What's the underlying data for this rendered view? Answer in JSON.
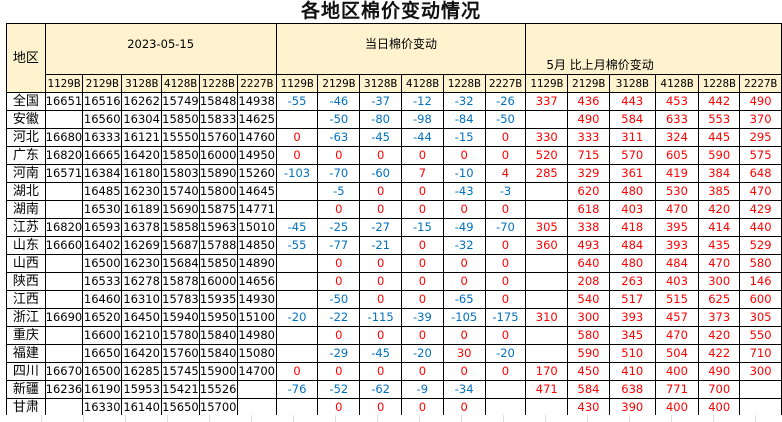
{
  "title": "各地区棉价变动情况",
  "headers": {
    "region": "地区",
    "date": "2023-05-15",
    "daily": "当日棉价变动",
    "monthly": "5月 比上月棉价变动",
    "grades": [
      "1129B",
      "2129B",
      "3128B",
      "4128B",
      "1228B",
      "2227B"
    ]
  },
  "colors": {
    "negative": "#0070c0",
    "non_negative": "#ff0000",
    "header_bg": "#fef2cf"
  },
  "rows": [
    {
      "region": "全国",
      "price": [
        "16651",
        "16516",
        "16262",
        "15749",
        "15848",
        "14938"
      ],
      "daily": [
        "-55",
        "-46",
        "-37",
        "-12",
        "-32",
        "-26"
      ],
      "monthly": [
        "337",
        "436",
        "443",
        "453",
        "442",
        "490"
      ]
    },
    {
      "region": "安徽",
      "price": [
        "",
        "16560",
        "16304",
        "15850",
        "15833",
        "14625"
      ],
      "daily": [
        "",
        "-50",
        "-80",
        "-98",
        "-84",
        "-50"
      ],
      "monthly": [
        "",
        "490",
        "584",
        "633",
        "553",
        "370"
      ]
    },
    {
      "region": "河北",
      "price": [
        "16680",
        "16333",
        "16121",
        "15550",
        "15760",
        "14760"
      ],
      "daily": [
        "0",
        "-63",
        "-45",
        "-44",
        "-15",
        "0"
      ],
      "monthly": [
        "330",
        "333",
        "311",
        "324",
        "445",
        "295"
      ]
    },
    {
      "region": "广东",
      "price": [
        "16820",
        "16665",
        "16420",
        "15850",
        "16000",
        "14950"
      ],
      "daily": [
        "0",
        "0",
        "0",
        "0",
        "0",
        "0"
      ],
      "monthly": [
        "520",
        "715",
        "570",
        "605",
        "590",
        "575"
      ]
    },
    {
      "region": "河南",
      "price": [
        "16571",
        "16384",
        "16180",
        "15803",
        "15890",
        "15260"
      ],
      "daily": [
        "-103",
        "-70",
        "-60",
        "7",
        "-10",
        "4"
      ],
      "monthly": [
        "285",
        "329",
        "361",
        "419",
        "384",
        "648"
      ]
    },
    {
      "region": "湖北",
      "price": [
        "",
        "16485",
        "16230",
        "15740",
        "15800",
        "14645"
      ],
      "daily": [
        "",
        "-5",
        "0",
        "0",
        "-43",
        "-3"
      ],
      "monthly": [
        "",
        "620",
        "480",
        "530",
        "385",
        "470"
      ]
    },
    {
      "region": "湖南",
      "price": [
        "",
        "16530",
        "16189",
        "15690",
        "15875",
        "14771"
      ],
      "daily": [
        "",
        "0",
        "0",
        "0",
        "0",
        "0"
      ],
      "monthly": [
        "",
        "618",
        "403",
        "470",
        "420",
        "429"
      ]
    },
    {
      "region": "江苏",
      "price": [
        "16820",
        "16593",
        "16378",
        "15858",
        "15963",
        "15010"
      ],
      "daily": [
        "-45",
        "-25",
        "-27",
        "-15",
        "-49",
        "-70"
      ],
      "monthly": [
        "305",
        "338",
        "418",
        "395",
        "414",
        "440"
      ]
    },
    {
      "region": "山东",
      "price": [
        "16660",
        "16402",
        "16269",
        "15687",
        "15788",
        "14850"
      ],
      "daily": [
        "-55",
        "-77",
        "-21",
        "0",
        "-32",
        "0"
      ],
      "monthly": [
        "360",
        "493",
        "484",
        "393",
        "435",
        "529"
      ]
    },
    {
      "region": "山西",
      "price": [
        "",
        "16500",
        "16230",
        "15684",
        "15850",
        "14890"
      ],
      "daily": [
        "",
        "0",
        "0",
        "0",
        "0",
        "0"
      ],
      "monthly": [
        "",
        "640",
        "480",
        "484",
        "470",
        "580"
      ]
    },
    {
      "region": "陕西",
      "price": [
        "",
        "16533",
        "16278",
        "15878",
        "16000",
        "14656"
      ],
      "daily": [
        "",
        "0",
        "0",
        "0",
        "0",
        "0"
      ],
      "monthly": [
        "",
        "208",
        "263",
        "403",
        "300",
        "146"
      ]
    },
    {
      "region": "江西",
      "price": [
        "",
        "16460",
        "16310",
        "15783",
        "15935",
        "14930"
      ],
      "daily": [
        "",
        "-50",
        "0",
        "0",
        "-65",
        "0"
      ],
      "monthly": [
        "",
        "540",
        "517",
        "515",
        "625",
        "600"
      ]
    },
    {
      "region": "浙江",
      "price": [
        "16690",
        "16520",
        "16450",
        "15940",
        "15950",
        "15100"
      ],
      "daily": [
        "-20",
        "-22",
        "-115",
        "-39",
        "-105",
        "-175"
      ],
      "monthly": [
        "310",
        "300",
        "393",
        "457",
        "373",
        "305"
      ]
    },
    {
      "region": "重庆",
      "price": [
        "",
        "16600",
        "16210",
        "15780",
        "15840",
        "14980"
      ],
      "daily": [
        "",
        "0",
        "0",
        "0",
        "0",
        "0"
      ],
      "monthly": [
        "",
        "580",
        "345",
        "470",
        "420",
        "550"
      ]
    },
    {
      "region": "福建",
      "price": [
        "",
        "16650",
        "16420",
        "15760",
        "15840",
        "15080"
      ],
      "daily": [
        "",
        "-29",
        "-45",
        "-20",
        "30",
        "-20"
      ],
      "monthly": [
        "",
        "590",
        "510",
        "504",
        "422",
        "710"
      ]
    },
    {
      "region": "四川",
      "price": [
        "16670",
        "16500",
        "16285",
        "15745",
        "15900",
        "14700"
      ],
      "daily": [
        "0",
        "0",
        "0",
        "0",
        "0",
        "0"
      ],
      "monthly": [
        "170",
        "450",
        "410",
        "400",
        "490",
        "300"
      ]
    },
    {
      "region": "新疆",
      "price": [
        "16236",
        "16190",
        "15953",
        "15421",
        "15526",
        ""
      ],
      "daily": [
        "-76",
        "-52",
        "-62",
        "-9",
        "-34",
        ""
      ],
      "monthly": [
        "471",
        "584",
        "638",
        "771",
        "700",
        ""
      ]
    },
    {
      "region": "甘肃",
      "price": [
        "",
        "16330",
        "16140",
        "15650",
        "15700",
        ""
      ],
      "daily": [
        "",
        "0",
        "0",
        "0",
        "0",
        ""
      ],
      "monthly": [
        "",
        "430",
        "390",
        "400",
        "400",
        ""
      ]
    }
  ]
}
